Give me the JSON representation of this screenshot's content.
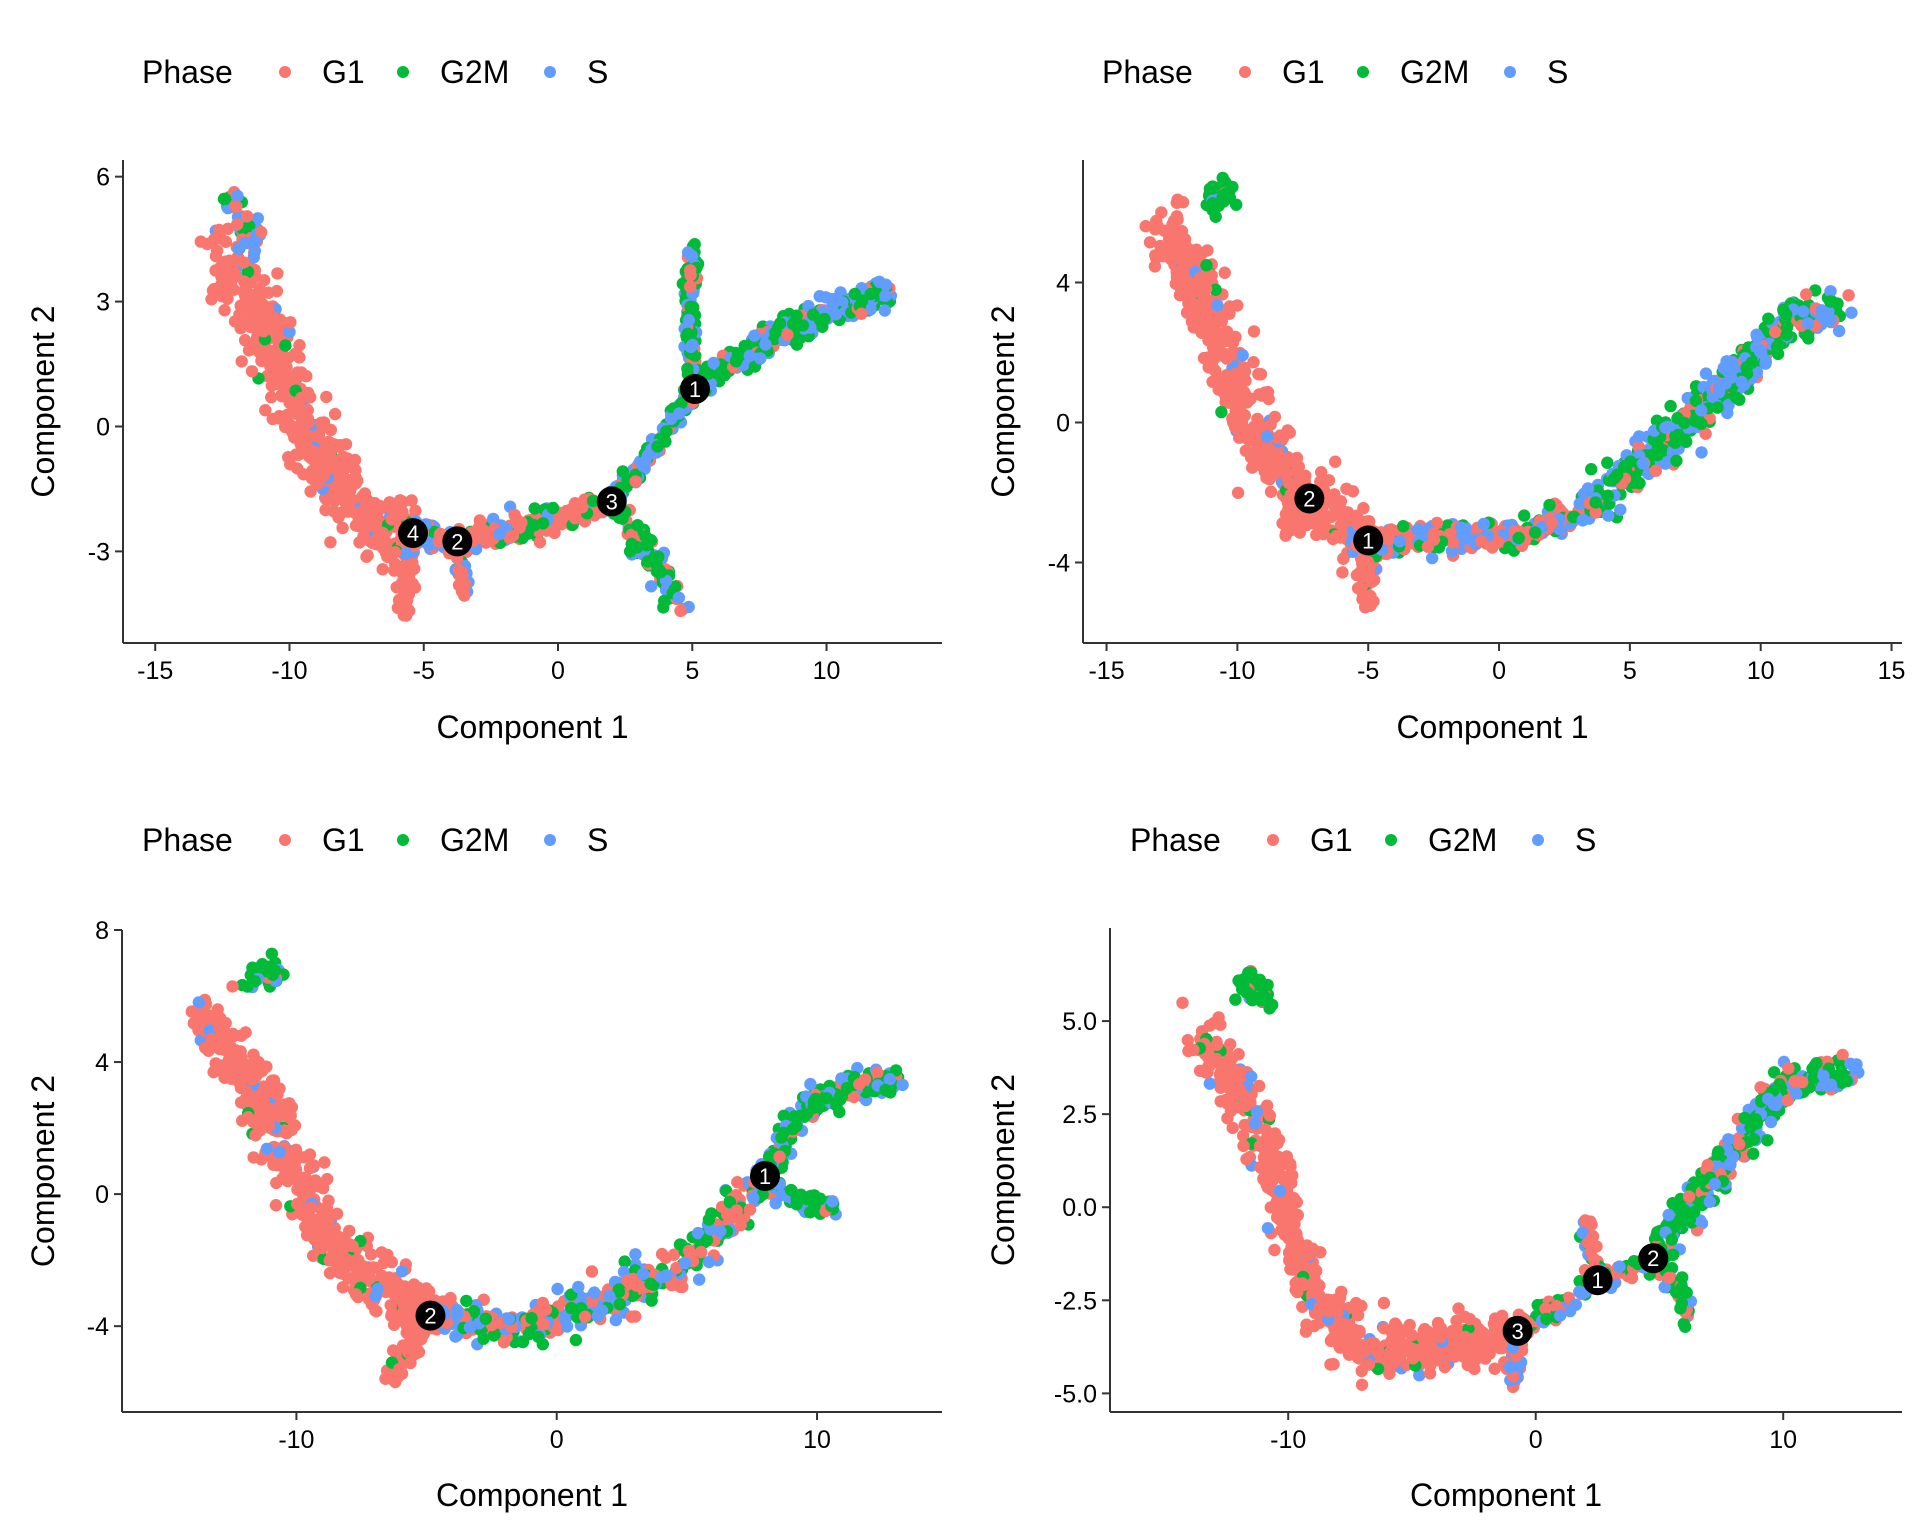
{
  "legend": {
    "title": "Phase",
    "entries": [
      {
        "label": "G1",
        "color": "#F8766D"
      },
      {
        "label": "G2M",
        "color": "#00BA38"
      },
      {
        "label": "S",
        "color": "#619CFF"
      }
    ]
  },
  "chart_data": [
    {
      "type": "scatter",
      "title": "",
      "xlabel": "Component 1",
      "ylabel": "Component 2",
      "xlim": [
        -16.2,
        14.3
      ],
      "ylim": [
        -5.2,
        6.4
      ],
      "xticks": [
        -15,
        -10,
        -5,
        0,
        5,
        10
      ],
      "xtick_labels": [
        "-15",
        "-10",
        "-5",
        "0",
        "5",
        "10"
      ],
      "yticks": [
        -3,
        0,
        3,
        6
      ],
      "ytick_labels": [
        "-3",
        "0",
        "3",
        "6"
      ],
      "legend_position": "top-left",
      "grid": false,
      "branches": [
        {
          "path": [
            [
              -12.5,
              4.3
            ],
            [
              -11,
              2.5
            ],
            [
              -9.5,
              0.2
            ],
            [
              -8.5,
              -1.2
            ],
            [
              -7,
              -2.2
            ],
            [
              -5.4,
              -2.6
            ]
          ],
          "spread": 0.9,
          "n": 520,
          "mix": [
            0.93,
            0.03,
            0.04
          ]
        },
        {
          "path": [
            [
              -12.2,
              5.6
            ],
            [
              -11.2,
              4.2
            ]
          ],
          "spread": 0.4,
          "n": 40,
          "mix": [
            0.3,
            0.4,
            0.3
          ]
        },
        {
          "path": [
            [
              -5.4,
              -2.6
            ],
            [
              -5.8,
              -4.5
            ]
          ],
          "spread": 0.35,
          "n": 60,
          "mix": [
            0.92,
            0.02,
            0.06
          ]
        },
        {
          "path": [
            [
              -3.75,
              -2.76
            ],
            [
              -3.5,
              -4.1
            ]
          ],
          "spread": 0.25,
          "n": 30,
          "mix": [
            0.6,
            0.05,
            0.35
          ]
        },
        {
          "path": [
            [
              -5.4,
              -2.6
            ],
            [
              -3.75,
              -2.76
            ],
            [
              -1,
              -2.4
            ],
            [
              2.0,
              -1.8
            ]
          ],
          "spread": 0.35,
          "n": 260,
          "mix": [
            0.55,
            0.18,
            0.27
          ]
        },
        {
          "path": [
            [
              2.0,
              -1.8
            ],
            [
              3.5,
              -0.6
            ],
            [
              5.1,
              0.9
            ]
          ],
          "spread": 0.25,
          "n": 120,
          "mix": [
            0.2,
            0.35,
            0.45
          ]
        },
        {
          "path": [
            [
              5.1,
              0.9
            ],
            [
              4.9,
              2.6
            ],
            [
              5.0,
              4.2
            ]
          ],
          "spread": 0.3,
          "n": 110,
          "mix": [
            0.2,
            0.55,
            0.25
          ]
        },
        {
          "path": [
            [
              2.0,
              -1.8
            ],
            [
              3.5,
              -3.2
            ],
            [
              4.5,
              -4.2
            ]
          ],
          "spread": 0.35,
          "n": 110,
          "mix": [
            0.25,
            0.5,
            0.25
          ]
        },
        {
          "path": [
            [
              5.1,
              0.9
            ],
            [
              8,
              2.2
            ],
            [
              10,
              2.7
            ],
            [
              12.3,
              3.3
            ]
          ],
          "spread": 0.4,
          "n": 260,
          "mix": [
            0.15,
            0.5,
            0.35
          ]
        }
      ],
      "states": [
        {
          "label": "1",
          "x": 5.1,
          "y": 0.9
        },
        {
          "label": "3",
          "x": 2.0,
          "y": -1.8
        },
        {
          "label": "4",
          "x": -5.4,
          "y": -2.56
        },
        {
          "label": "2",
          "x": -3.75,
          "y": -2.76
        }
      ]
    },
    {
      "type": "scatter",
      "title": "",
      "xlabel": "Component 1",
      "ylabel": "Component 2",
      "xlim": [
        -15.9,
        15.4
      ],
      "ylim": [
        -6.3,
        7.5
      ],
      "xticks": [
        -15,
        -10,
        -5,
        0,
        5,
        10,
        15
      ],
      "xtick_labels": [
        "-15",
        "-10",
        "-5",
        "0",
        "5",
        "10",
        "15"
      ],
      "yticks": [
        -4,
        0,
        4
      ],
      "ytick_labels": [
        "-4",
        "0",
        "4"
      ],
      "legend_position": "top-left",
      "grid": false,
      "branches": [
        {
          "path": [
            [
              -12.7,
              5.6
            ],
            [
              -11.5,
              3.8
            ],
            [
              -10.2,
              1.5
            ],
            [
              -9.2,
              -0.5
            ],
            [
              -7.3,
              -2.2
            ],
            [
              -5.0,
              -3.37
            ]
          ],
          "spread": 0.9,
          "n": 520,
          "mix": [
            0.9,
            0.03,
            0.07
          ]
        },
        {
          "path": [
            [
              -11,
              6.3
            ],
            [
              -10.3,
              6.6
            ]
          ],
          "spread": 0.4,
          "n": 45,
          "mix": [
            0.1,
            0.8,
            0.1
          ]
        },
        {
          "path": [
            [
              -7.3,
              -2.2
            ],
            [
              -8.3,
              -3.1
            ]
          ],
          "spread": 0.4,
          "n": 40,
          "mix": [
            0.97,
            0.0,
            0.03
          ]
        },
        {
          "path": [
            [
              -5.0,
              -3.37
            ],
            [
              -5.1,
              -5.2
            ]
          ],
          "spread": 0.35,
          "n": 70,
          "mix": [
            0.85,
            0.08,
            0.07
          ]
        },
        {
          "path": [
            [
              -5.0,
              -3.37
            ],
            [
              -2,
              -3.3
            ],
            [
              1,
              -3.2
            ],
            [
              3.5,
              -2.5
            ]
          ],
          "spread": 0.45,
          "n": 260,
          "mix": [
            0.5,
            0.2,
            0.3
          ]
        },
        {
          "path": [
            [
              3.5,
              -2.5
            ],
            [
              6,
              -0.8
            ],
            [
              9,
              1.2
            ],
            [
              11,
              2.8
            ],
            [
              13.2,
              3.2
            ]
          ],
          "spread": 0.7,
          "n": 420,
          "mix": [
            0.12,
            0.48,
            0.4
          ]
        }
      ],
      "states": [
        {
          "label": "2",
          "x": -7.25,
          "y": -2.17
        },
        {
          "label": "1",
          "x": -5.0,
          "y": -3.37
        }
      ]
    },
    {
      "type": "scatter",
      "title": "",
      "xlabel": "Component 1",
      "ylabel": "Component 2",
      "xlim": [
        -16.7,
        14.8
      ],
      "ylim": [
        -6.6,
        8.0
      ],
      "xticks": [
        -10,
        0,
        10
      ],
      "xtick_labels": [
        "-10",
        "0",
        "10"
      ],
      "yticks": [
        -4,
        0,
        4,
        8
      ],
      "ytick_labels": [
        "-4",
        "0",
        "4",
        "8"
      ],
      "legend_position": "top-left",
      "grid": false,
      "branches": [
        {
          "path": [
            [
              -13.5,
              5.4
            ],
            [
              -11.5,
              3.2
            ],
            [
              -10,
              0.5
            ],
            [
              -8,
              -2.2
            ],
            [
              -4.85,
              -3.68
            ]
          ],
          "spread": 0.9,
          "n": 520,
          "mix": [
            0.93,
            0.02,
            0.05
          ]
        },
        {
          "path": [
            [
              -11.8,
              6.6
            ],
            [
              -10.8,
              6.7
            ]
          ],
          "spread": 0.4,
          "n": 45,
          "mix": [
            0.1,
            0.8,
            0.1
          ]
        },
        {
          "path": [
            [
              -4.85,
              -3.68
            ],
            [
              -6.3,
              -5.5
            ]
          ],
          "spread": 0.4,
          "n": 70,
          "mix": [
            0.93,
            0.04,
            0.03
          ]
        },
        {
          "path": [
            [
              -4.85,
              -3.68
            ],
            [
              -1,
              -4.0
            ],
            [
              2,
              -3.2
            ],
            [
              5,
              -2.0
            ],
            [
              8.0,
              0.55
            ]
          ],
          "spread": 0.7,
          "n": 360,
          "mix": [
            0.38,
            0.3,
            0.32
          ]
        },
        {
          "path": [
            [
              8.0,
              0.55
            ],
            [
              9.5,
              2.6
            ],
            [
              11.5,
              3.3
            ],
            [
              13.2,
              3.4
            ]
          ],
          "spread": 0.45,
          "n": 200,
          "mix": [
            0.12,
            0.6,
            0.28
          ]
        },
        {
          "path": [
            [
              8.0,
              0.55
            ],
            [
              9.5,
              -0.3
            ],
            [
              10.8,
              -0.3
            ]
          ],
          "spread": 0.35,
          "n": 70,
          "mix": [
            0.15,
            0.6,
            0.25
          ]
        }
      ],
      "states": [
        {
          "label": "1",
          "x": 8.0,
          "y": 0.55
        },
        {
          "label": "2",
          "x": -4.85,
          "y": -3.68
        }
      ]
    },
    {
      "type": "scatter",
      "title": "",
      "xlabel": "Component 1",
      "ylabel": "Component 2",
      "xlim": [
        -17.2,
        14.8
      ],
      "ylim": [
        -5.5,
        7.5
      ],
      "xticks": [
        -10,
        0,
        10
      ],
      "xtick_labels": [
        "-10",
        "0",
        "10"
      ],
      "yticks": [
        -5.0,
        -2.5,
        0.0,
        2.5,
        5.0
      ],
      "ytick_labels": [
        "-5.0",
        "-2.5",
        "0.0",
        "2.5",
        "5.0"
      ],
      "legend_position": "top-left",
      "grid": false,
      "branches": [
        {
          "path": [
            [
              -13.5,
              4.6
            ],
            [
              -11.5,
              2.5
            ],
            [
              -10,
              0
            ],
            [
              -9,
              -2.5
            ],
            [
              -7,
              -3.8
            ],
            [
              -4.5,
              -3.9
            ],
            [
              -0.73,
              -3.32
            ]
          ],
          "spread": 0.85,
          "n": 620,
          "mix": [
            0.92,
            0.02,
            0.06
          ]
        },
        {
          "path": [
            [
              -11.8,
              6.0
            ],
            [
              -10.8,
              5.6
            ]
          ],
          "spread": 0.4,
          "n": 45,
          "mix": [
            0.1,
            0.8,
            0.1
          ]
        },
        {
          "path": [
            [
              -0.73,
              -3.32
            ],
            [
              -0.9,
              -4.6
            ]
          ],
          "spread": 0.3,
          "n": 45,
          "mix": [
            0.5,
            0.1,
            0.4
          ]
        },
        {
          "path": [
            [
              -0.73,
              -3.32
            ],
            [
              1,
              -2.7
            ],
            [
              2.5,
              -1.96
            ],
            [
              4.75,
              -1.37
            ]
          ],
          "spread": 0.3,
          "n": 130,
          "mix": [
            0.3,
            0.35,
            0.35
          ]
        },
        {
          "path": [
            [
              2.5,
              -1.96
            ],
            [
              2.0,
              -0.4
            ]
          ],
          "spread": 0.3,
          "n": 45,
          "mix": [
            0.6,
            0.25,
            0.15
          ]
        },
        {
          "path": [
            [
              4.75,
              -1.37
            ],
            [
              6.0,
              -2.4
            ],
            [
              6.2,
              -3.1
            ]
          ],
          "spread": 0.3,
          "n": 50,
          "mix": [
            0.25,
            0.5,
            0.25
          ]
        },
        {
          "path": [
            [
              4.75,
              -1.37
            ],
            [
              7.5,
              1.2
            ],
            [
              10,
              3.3
            ],
            [
              12.8,
              3.6
            ]
          ],
          "spread": 0.55,
          "n": 300,
          "mix": [
            0.12,
            0.55,
            0.33
          ]
        }
      ],
      "states": [
        {
          "label": "1",
          "x": 2.5,
          "y": -1.96
        },
        {
          "label": "2",
          "x": 4.75,
          "y": -1.37
        },
        {
          "label": "3",
          "x": -0.73,
          "y": -3.32
        }
      ]
    }
  ]
}
